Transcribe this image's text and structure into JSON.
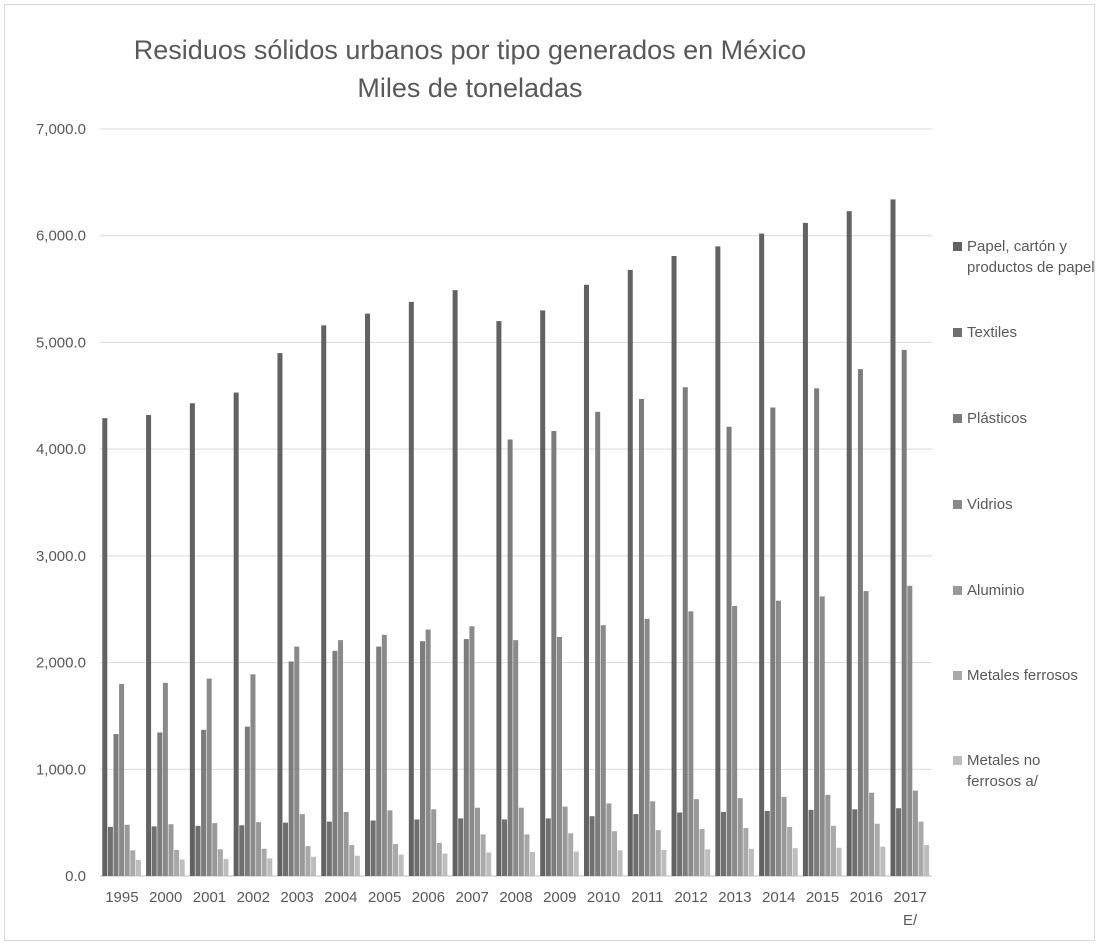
{
  "chart_data": {
    "type": "bar",
    "title": "Residuos sólidos urbanos por tipo generados en México",
    "subtitle": "Miles de toneladas",
    "categories": [
      "1995",
      "2000",
      "2001",
      "2002",
      "2003",
      "2004",
      "2005",
      "2006",
      "2007",
      "2008",
      "2009",
      "2010",
      "2011",
      "2012",
      "2013",
      "2014",
      "2015",
      "2016",
      "2017"
    ],
    "category_sublabels": {
      "2017": "E/"
    },
    "ylim": [
      0,
      7000
    ],
    "yticks": [
      "0.0",
      "1,000.0",
      "2,000.0",
      "3,000.0",
      "4,000.0",
      "5,000.0",
      "6,000.0",
      "7,000.0"
    ],
    "grid": "horizontal",
    "legend_position": "right",
    "series": [
      {
        "name": "Papel, cartón y productos de papel",
        "color": "#626262",
        "values": [
          4290,
          4320,
          4430,
          4530,
          4900,
          5160,
          5270,
          5380,
          5490,
          5200,
          5300,
          5540,
          5680,
          5810,
          5900,
          6020,
          6120,
          6230,
          6340
        ]
      },
      {
        "name": "Textiles",
        "color": "#6f6f6f",
        "values": [
          460,
          465,
          470,
          475,
          500,
          510,
          520,
          530,
          540,
          530,
          540,
          560,
          580,
          595,
          600,
          610,
          620,
          625,
          635
        ]
      },
      {
        "name": "Plásticos",
        "color": "#7c7c7c",
        "values": [
          1330,
          1345,
          1370,
          1400,
          2010,
          2110,
          2150,
          2200,
          2220,
          4090,
          4170,
          4350,
          4470,
          4580,
          4210,
          4390,
          4570,
          4750,
          4930
        ]
      },
      {
        "name": "Vidrios",
        "color": "#8a8a8a",
        "values": [
          1800,
          1810,
          1850,
          1890,
          2150,
          2210,
          2260,
          2310,
          2340,
          2210,
          2240,
          2350,
          2410,
          2480,
          2530,
          2580,
          2620,
          2670,
          2720
        ]
      },
      {
        "name": "Aluminio",
        "color": "#999999",
        "values": [
          480,
          485,
          495,
          505,
          580,
          600,
          615,
          625,
          640,
          640,
          650,
          680,
          700,
          720,
          730,
          740,
          760,
          780,
          800
        ]
      },
      {
        "name": "Metales ferrosos",
        "color": "#a9a9a9",
        "values": [
          240,
          245,
          250,
          255,
          280,
          290,
          300,
          310,
          390,
          390,
          400,
          420,
          430,
          440,
          450,
          460,
          470,
          490,
          510
        ]
      },
      {
        "name": "Metales no ferrosos a/",
        "color": "#bdbdbd",
        "values": [
          150,
          155,
          160,
          165,
          180,
          190,
          200,
          210,
          220,
          225,
          230,
          240,
          245,
          250,
          255,
          260,
          265,
          275,
          290
        ]
      }
    ]
  },
  "legend": {
    "items": [
      {
        "label": "Papel, cartón y productos de papel",
        "color": "#626262"
      },
      {
        "label": "Textiles",
        "color": "#6f6f6f"
      },
      {
        "label": "Plásticos",
        "color": "#7c7c7c"
      },
      {
        "label": "Vidrios",
        "color": "#8a8a8a"
      },
      {
        "label": "Aluminio",
        "color": "#999999"
      },
      {
        "label": "Metales ferrosos",
        "color": "#a9a9a9"
      },
      {
        "label": "Metales no ferrosos a/",
        "color": "#bdbdbd"
      }
    ]
  }
}
